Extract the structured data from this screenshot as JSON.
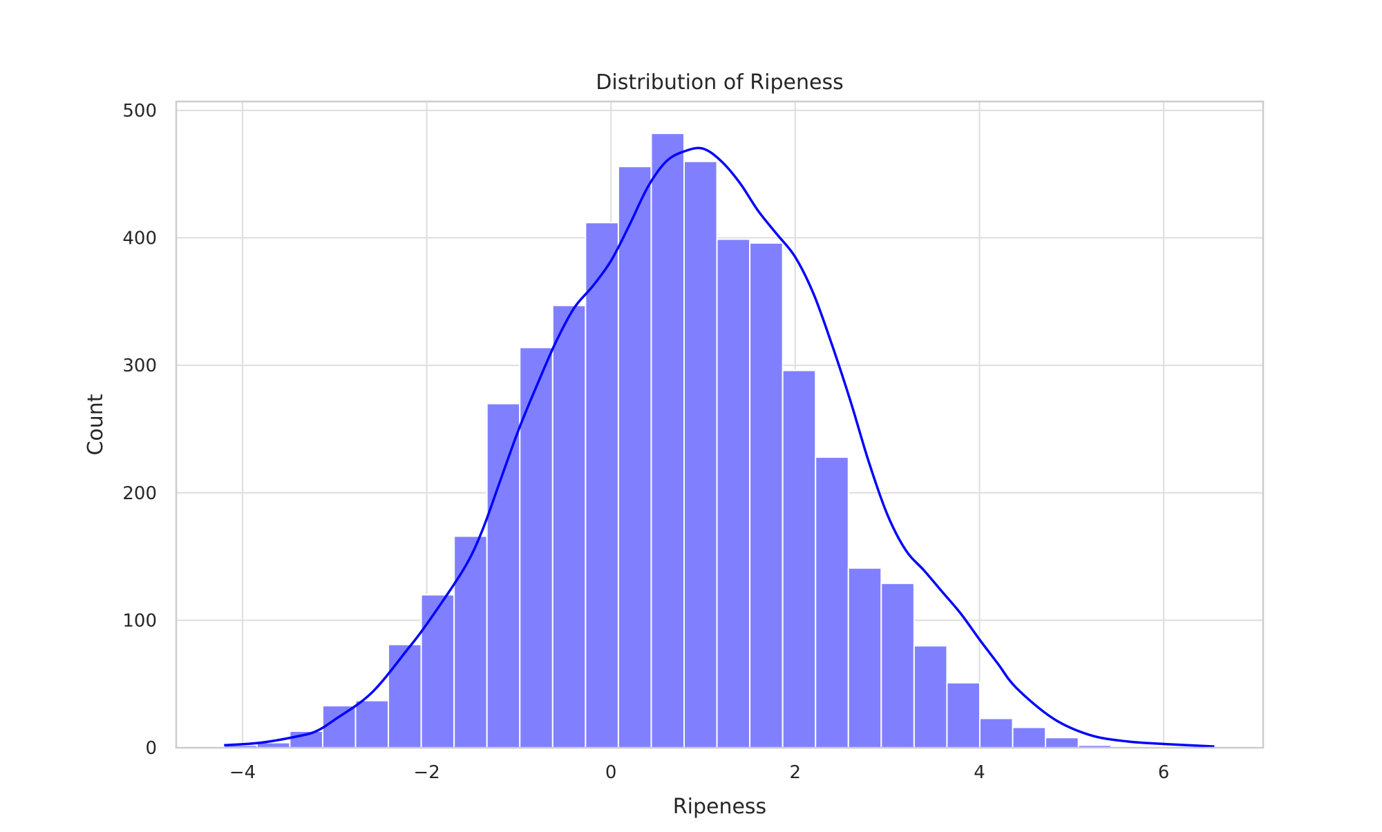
{
  "chart_data": {
    "type": "bar",
    "title": "Distribution of Ripeness",
    "xlabel": "Ripeness",
    "ylabel": "Count",
    "xlim": [
      -4.72,
      7.08
    ],
    "ylim": [
      0,
      500
    ],
    "x_ticks": [
      -4,
      -2,
      0,
      2,
      4,
      6
    ],
    "x_tick_labels": [
      "−4",
      "−2",
      "0",
      "2",
      "4",
      "6"
    ],
    "y_ticks": [
      0,
      100,
      200,
      300,
      400,
      500
    ],
    "y_tick_labels": [
      "0",
      "100",
      "200",
      "300",
      "400",
      "500"
    ],
    "grid": true,
    "bins": {
      "start": -4.2,
      "width": 0.3567,
      "counts": [
        2,
        4,
        13,
        33,
        37,
        81,
        120,
        166,
        270,
        314,
        347,
        412,
        456,
        482,
        460,
        399,
        396,
        296,
        228,
        141,
        129,
        80,
        51,
        23,
        16,
        8,
        2,
        1,
        1,
        1
      ]
    },
    "kde": {
      "x": [
        -4.2,
        -3.8,
        -3.4,
        -3.2,
        -3.0,
        -2.6,
        -2.2,
        -2.0,
        -1.6,
        -1.4,
        -1.2,
        -1.0,
        -0.8,
        -0.6,
        -0.4,
        -0.2,
        0.0,
        0.2,
        0.4,
        0.6,
        0.8,
        1.0,
        1.2,
        1.4,
        1.6,
        1.8,
        2.0,
        2.2,
        2.4,
        2.6,
        2.8,
        3.0,
        3.2,
        3.4,
        3.6,
        3.8,
        4.0,
        4.2,
        4.4,
        4.8,
        5.2,
        5.6,
        6.0,
        6.55
      ],
      "y": [
        2,
        4,
        9,
        13,
        22,
        43,
        78,
        97,
        140,
        170,
        210,
        250,
        285,
        318,
        345,
        362,
        382,
        410,
        440,
        460,
        468,
        470,
        460,
        443,
        421,
        403,
        385,
        356,
        316,
        272,
        224,
        183,
        155,
        139,
        122,
        105,
        85,
        66,
        47,
        23,
        10,
        5,
        3,
        1
      ],
      "color": "#0000ff"
    },
    "bar_color": "#8080ff",
    "line_color": "#0000ff"
  }
}
